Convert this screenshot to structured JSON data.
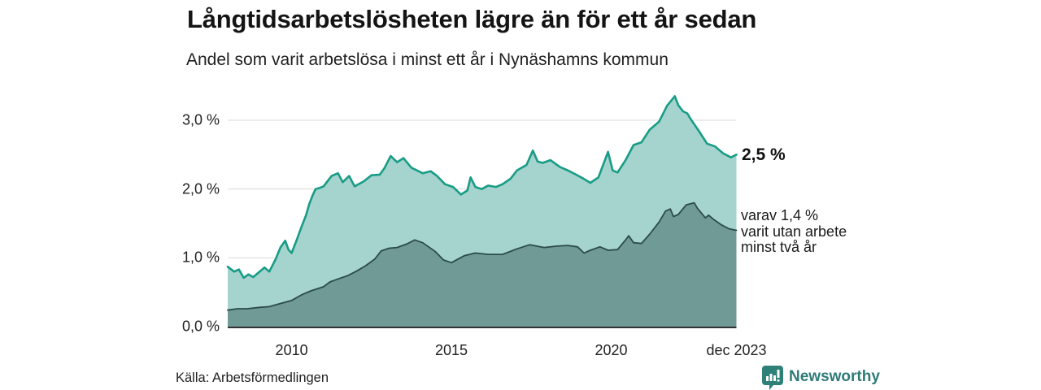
{
  "header": {
    "title": "Långtidsarbetslösheten lägre än för ett år sedan",
    "subtitle": "Andel som varit arbetslösa i minst ett år i Nynäshamns kommun"
  },
  "chart_data": {
    "type": "area",
    "title": "Långtidsarbetslösheten lägre än för ett år sedan",
    "subtitle": "Andel som varit arbetslösa i minst ett år i Nynäshamns kommun",
    "unit": "%",
    "grid": "horizontal",
    "xlim": [
      2008.0,
      2023.92
    ],
    "ylim": [
      0,
      3.5
    ],
    "x_axis": {
      "ticks": [
        {
          "label": "2010",
          "t": 2010
        },
        {
          "label": "2015",
          "t": 2015
        },
        {
          "label": "2020",
          "t": 2020
        },
        {
          "label": "dec 2023",
          "t": 2023.92
        }
      ]
    },
    "y_axis": {
      "ticks": [
        {
          "label": "0,0 %",
          "v": 0
        },
        {
          "label": "1,0 %",
          "v": 1
        },
        {
          "label": "2,0 %",
          "v": 2
        },
        {
          "label": "3,0 %",
          "v": 3
        }
      ]
    },
    "series": [
      {
        "name": "andel arbetslösa minst ett år",
        "line_color": "#189c86",
        "fill_color": "#a5d3cd",
        "line_width": 2.6,
        "last_value_label": "2,5 %",
        "points": [
          [
            2008.0,
            0.87
          ],
          [
            2008.2,
            0.8
          ],
          [
            2008.35,
            0.83
          ],
          [
            2008.5,
            0.71
          ],
          [
            2008.65,
            0.76
          ],
          [
            2008.8,
            0.72
          ],
          [
            2009.0,
            0.8
          ],
          [
            2009.15,
            0.86
          ],
          [
            2009.3,
            0.8
          ],
          [
            2009.5,
            0.98
          ],
          [
            2009.65,
            1.15
          ],
          [
            2009.8,
            1.25
          ],
          [
            2009.9,
            1.12
          ],
          [
            2010.0,
            1.07
          ],
          [
            2010.15,
            1.25
          ],
          [
            2010.3,
            1.44
          ],
          [
            2010.45,
            1.62
          ],
          [
            2010.55,
            1.78
          ],
          [
            2010.65,
            1.9
          ],
          [
            2010.75,
            2.0
          ],
          [
            2010.9,
            2.02
          ],
          [
            2011.0,
            2.04
          ],
          [
            2011.25,
            2.19
          ],
          [
            2011.45,
            2.23
          ],
          [
            2011.6,
            2.1
          ],
          [
            2011.8,
            2.19
          ],
          [
            2011.97,
            2.04
          ],
          [
            2012.25,
            2.11
          ],
          [
            2012.5,
            2.2
          ],
          [
            2012.76,
            2.21
          ],
          [
            2012.9,
            2.3
          ],
          [
            2013.1,
            2.48
          ],
          [
            2013.3,
            2.39
          ],
          [
            2013.5,
            2.45
          ],
          [
            2013.75,
            2.31
          ],
          [
            2014.1,
            2.23
          ],
          [
            2014.35,
            2.26
          ],
          [
            2014.55,
            2.19
          ],
          [
            2014.8,
            2.07
          ],
          [
            2015.05,
            2.03
          ],
          [
            2015.3,
            1.92
          ],
          [
            2015.5,
            1.98
          ],
          [
            2015.6,
            2.17
          ],
          [
            2015.75,
            2.03
          ],
          [
            2015.95,
            2.0
          ],
          [
            2016.15,
            2.05
          ],
          [
            2016.4,
            2.03
          ],
          [
            2016.6,
            2.07
          ],
          [
            2016.85,
            2.15
          ],
          [
            2017.05,
            2.27
          ],
          [
            2017.35,
            2.35
          ],
          [
            2017.55,
            2.56
          ],
          [
            2017.7,
            2.4
          ],
          [
            2017.85,
            2.38
          ],
          [
            2018.1,
            2.42
          ],
          [
            2018.4,
            2.32
          ],
          [
            2018.65,
            2.27
          ],
          [
            2018.9,
            2.21
          ],
          [
            2019.1,
            2.16
          ],
          [
            2019.35,
            2.09
          ],
          [
            2019.6,
            2.17
          ],
          [
            2019.9,
            2.54
          ],
          [
            2020.05,
            2.27
          ],
          [
            2020.2,
            2.24
          ],
          [
            2020.45,
            2.42
          ],
          [
            2020.7,
            2.64
          ],
          [
            2020.95,
            2.68
          ],
          [
            2021.2,
            2.86
          ],
          [
            2021.5,
            2.98
          ],
          [
            2021.75,
            3.21
          ],
          [
            2021.99,
            3.35
          ],
          [
            2022.1,
            3.22
          ],
          [
            2022.25,
            3.13
          ],
          [
            2022.38,
            3.1
          ],
          [
            2022.5,
            3.01
          ],
          [
            2022.75,
            2.84
          ],
          [
            2023.0,
            2.66
          ],
          [
            2023.25,
            2.62
          ],
          [
            2023.5,
            2.52
          ],
          [
            2023.75,
            2.46
          ],
          [
            2023.92,
            2.5
          ]
        ]
      },
      {
        "name": "varav utan arbete minst två år",
        "line_color": "#2c4a4c",
        "fill_color": "#6f9a96",
        "line_width": 1.8,
        "last_value_label": "1,4 %",
        "points": [
          [
            2008.0,
            0.24
          ],
          [
            2008.3,
            0.26
          ],
          [
            2008.6,
            0.26
          ],
          [
            2009.0,
            0.28
          ],
          [
            2009.3,
            0.29
          ],
          [
            2009.6,
            0.33
          ],
          [
            2010.0,
            0.38
          ],
          [
            2010.3,
            0.46
          ],
          [
            2010.6,
            0.52
          ],
          [
            2011.0,
            0.58
          ],
          [
            2011.2,
            0.65
          ],
          [
            2011.5,
            0.7
          ],
          [
            2011.75,
            0.74
          ],
          [
            2012.0,
            0.8
          ],
          [
            2012.3,
            0.88
          ],
          [
            2012.6,
            0.98
          ],
          [
            2012.8,
            1.1
          ],
          [
            2013.05,
            1.14
          ],
          [
            2013.3,
            1.15
          ],
          [
            2013.6,
            1.2
          ],
          [
            2013.85,
            1.26
          ],
          [
            2014.1,
            1.22
          ],
          [
            2014.5,
            1.09
          ],
          [
            2014.75,
            0.97
          ],
          [
            2015.0,
            0.93
          ],
          [
            2015.4,
            1.03
          ],
          [
            2015.75,
            1.07
          ],
          [
            2016.15,
            1.05
          ],
          [
            2016.6,
            1.05
          ],
          [
            2017.05,
            1.13
          ],
          [
            2017.45,
            1.19
          ],
          [
            2017.9,
            1.15
          ],
          [
            2018.3,
            1.17
          ],
          [
            2018.65,
            1.18
          ],
          [
            2018.95,
            1.16
          ],
          [
            2019.15,
            1.07
          ],
          [
            2019.35,
            1.11
          ],
          [
            2019.65,
            1.16
          ],
          [
            2019.9,
            1.11
          ],
          [
            2020.2,
            1.12
          ],
          [
            2020.45,
            1.26
          ],
          [
            2020.55,
            1.32
          ],
          [
            2020.7,
            1.22
          ],
          [
            2020.95,
            1.21
          ],
          [
            2021.2,
            1.34
          ],
          [
            2021.5,
            1.52
          ],
          [
            2021.7,
            1.68
          ],
          [
            2021.85,
            1.71
          ],
          [
            2021.95,
            1.6
          ],
          [
            2022.1,
            1.63
          ],
          [
            2022.35,
            1.77
          ],
          [
            2022.6,
            1.8
          ],
          [
            2022.7,
            1.72
          ],
          [
            2022.95,
            1.58
          ],
          [
            2023.05,
            1.62
          ],
          [
            2023.2,
            1.56
          ],
          [
            2023.45,
            1.48
          ],
          [
            2023.7,
            1.42
          ],
          [
            2023.92,
            1.4
          ]
        ]
      }
    ],
    "annotations": {
      "last_value": "2,5 %",
      "secondary_line1": "varav 1,4 %",
      "secondary_line2": "varit utan arbete",
      "secondary_line3": "minst två år"
    },
    "colors": {
      "gridline": "#d9d9d9",
      "axis_line": "#333333",
      "background": "#ffffff"
    }
  },
  "footer": {
    "source": "Källa: Arbetsförmedlingen",
    "brand_name": "Newsworthy",
    "brand_color": "#2e7b78"
  }
}
